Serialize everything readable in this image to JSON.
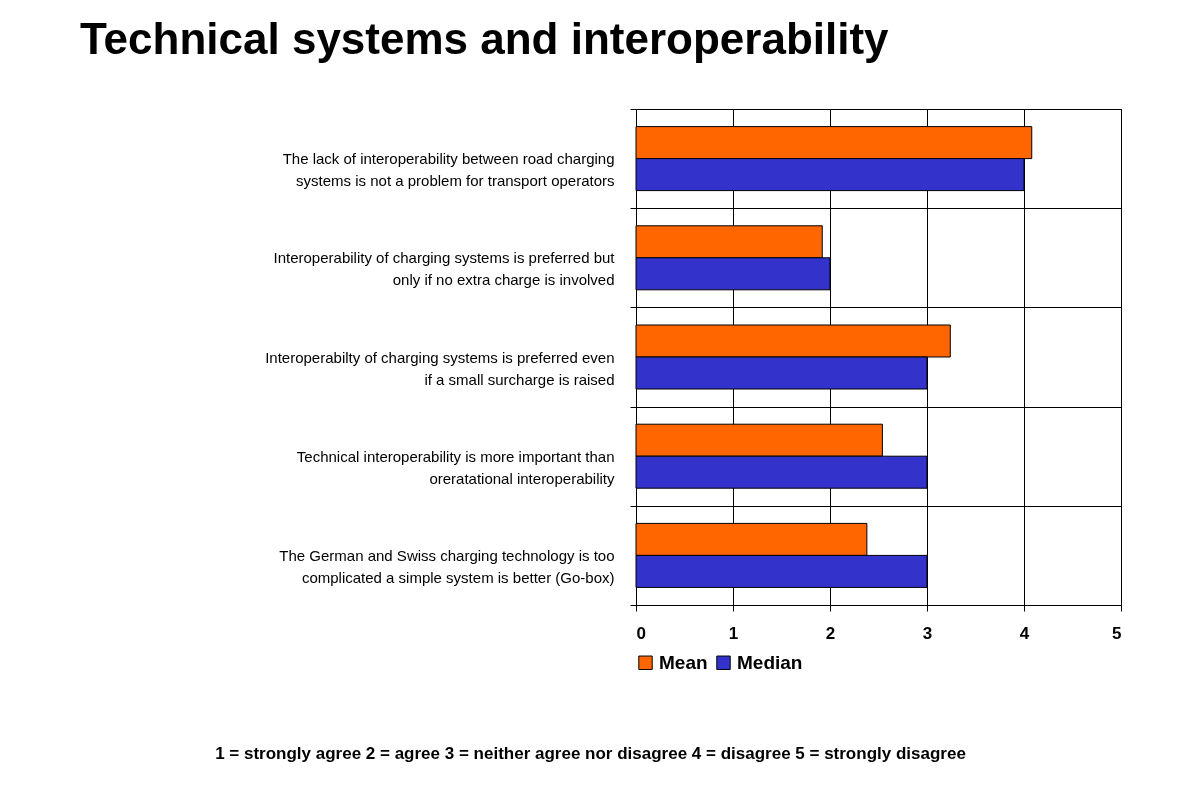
{
  "chart_data": {
    "type": "bar",
    "orientation": "horizontal",
    "title": "Technical systems and interoperability",
    "categories": [
      "The lack of interoperability between road charging systems is not a problem for transport operators",
      "Interoperability of charging systems is preferred but only if no extra charge is involved",
      "Interoperabilty of charging systems is preferred even if a small surcharge is raised",
      "Technical interoperability is more important than oreratational interoperability",
      "The German and Swiss charging technology is too complicated a simple system is better (Go-box)"
    ],
    "series": [
      {
        "name": "Mean",
        "color": "#ff6600",
        "values": [
          4.08,
          1.92,
          3.24,
          2.54,
          2.38
        ]
      },
      {
        "name": "Median",
        "color": "#3333cc",
        "values": [
          4,
          2,
          3,
          3,
          3
        ]
      }
    ],
    "xlim": [
      0,
      5
    ],
    "xticks": [
      0,
      1,
      2,
      3,
      4,
      5
    ],
    "grid": true,
    "legend": "bottom",
    "annotations": [
      "1 = strongly agree 2 = agree 3 = neither agree nor disagree 4 = disagree 5 = strongly disagree"
    ]
  }
}
